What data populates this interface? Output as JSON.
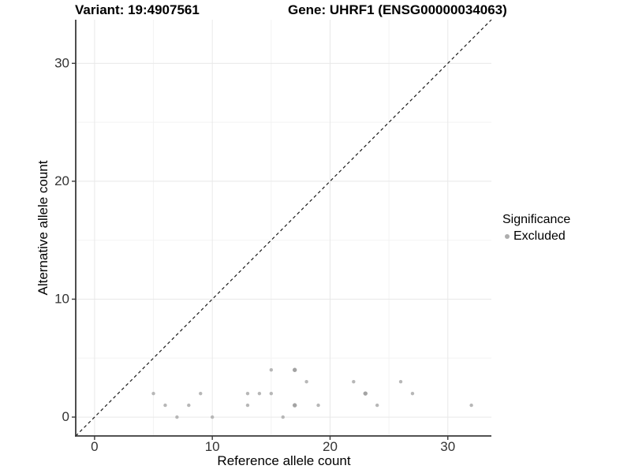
{
  "chart_data": {
    "type": "scatter",
    "title_left": "Variant: 19:4907561",
    "title_right": "Gene: UHRF1 (ENSG00000034063)",
    "xlabel": "Reference allele count",
    "ylabel": "Alternative allele count",
    "xlim": [
      -1.6,
      33.7
    ],
    "ylim": [
      -1.6,
      33.7
    ],
    "x_ticks": [
      0,
      10,
      20,
      30
    ],
    "y_ticks": [
      0,
      10,
      20,
      30
    ],
    "x_minor_ticks": [
      5,
      15,
      25
    ],
    "y_minor_ticks": [
      5,
      15,
      25
    ],
    "grid": "major+minor",
    "identity_line": {
      "style": "dashed",
      "equation": "y = x",
      "color": "#1a1a1a"
    },
    "series": [
      {
        "name": "Excluded",
        "color": "#b7b7b7",
        "overlap_color": "#a3a3a3",
        "points": [
          {
            "x": 5,
            "y": 2,
            "n": 1
          },
          {
            "x": 6,
            "y": 1,
            "n": 1
          },
          {
            "x": 7,
            "y": 0,
            "n": 1
          },
          {
            "x": 8,
            "y": 1,
            "n": 1
          },
          {
            "x": 9,
            "y": 2,
            "n": 1
          },
          {
            "x": 10,
            "y": 0,
            "n": 1
          },
          {
            "x": 13,
            "y": 1,
            "n": 1
          },
          {
            "x": 13,
            "y": 2,
            "n": 1
          },
          {
            "x": 14,
            "y": 2,
            "n": 1
          },
          {
            "x": 15,
            "y": 2,
            "n": 1
          },
          {
            "x": 15,
            "y": 4,
            "n": 1
          },
          {
            "x": 16,
            "y": 0,
            "n": 1
          },
          {
            "x": 17,
            "y": 1,
            "n": 2
          },
          {
            "x": 17,
            "y": 4,
            "n": 2
          },
          {
            "x": 18,
            "y": 3,
            "n": 1
          },
          {
            "x": 19,
            "y": 1,
            "n": 1
          },
          {
            "x": 22,
            "y": 3,
            "n": 1
          },
          {
            "x": 23,
            "y": 2,
            "n": 2
          },
          {
            "x": 24,
            "y": 1,
            "n": 1
          },
          {
            "x": 26,
            "y": 3,
            "n": 1
          },
          {
            "x": 27,
            "y": 2,
            "n": 1
          },
          {
            "x": 32,
            "y": 1,
            "n": 1
          }
        ]
      }
    ],
    "legend": {
      "title": "Significance",
      "position": "right",
      "entries": [
        {
          "label": "Excluded",
          "color": "#adadad"
        }
      ]
    }
  },
  "colors": {
    "background": "#ffffff",
    "axis_line": "#3a3a3a",
    "tick_label": "#333333",
    "grid_major": "#e8e8e8",
    "grid_minor": "#f3f3f3"
  }
}
